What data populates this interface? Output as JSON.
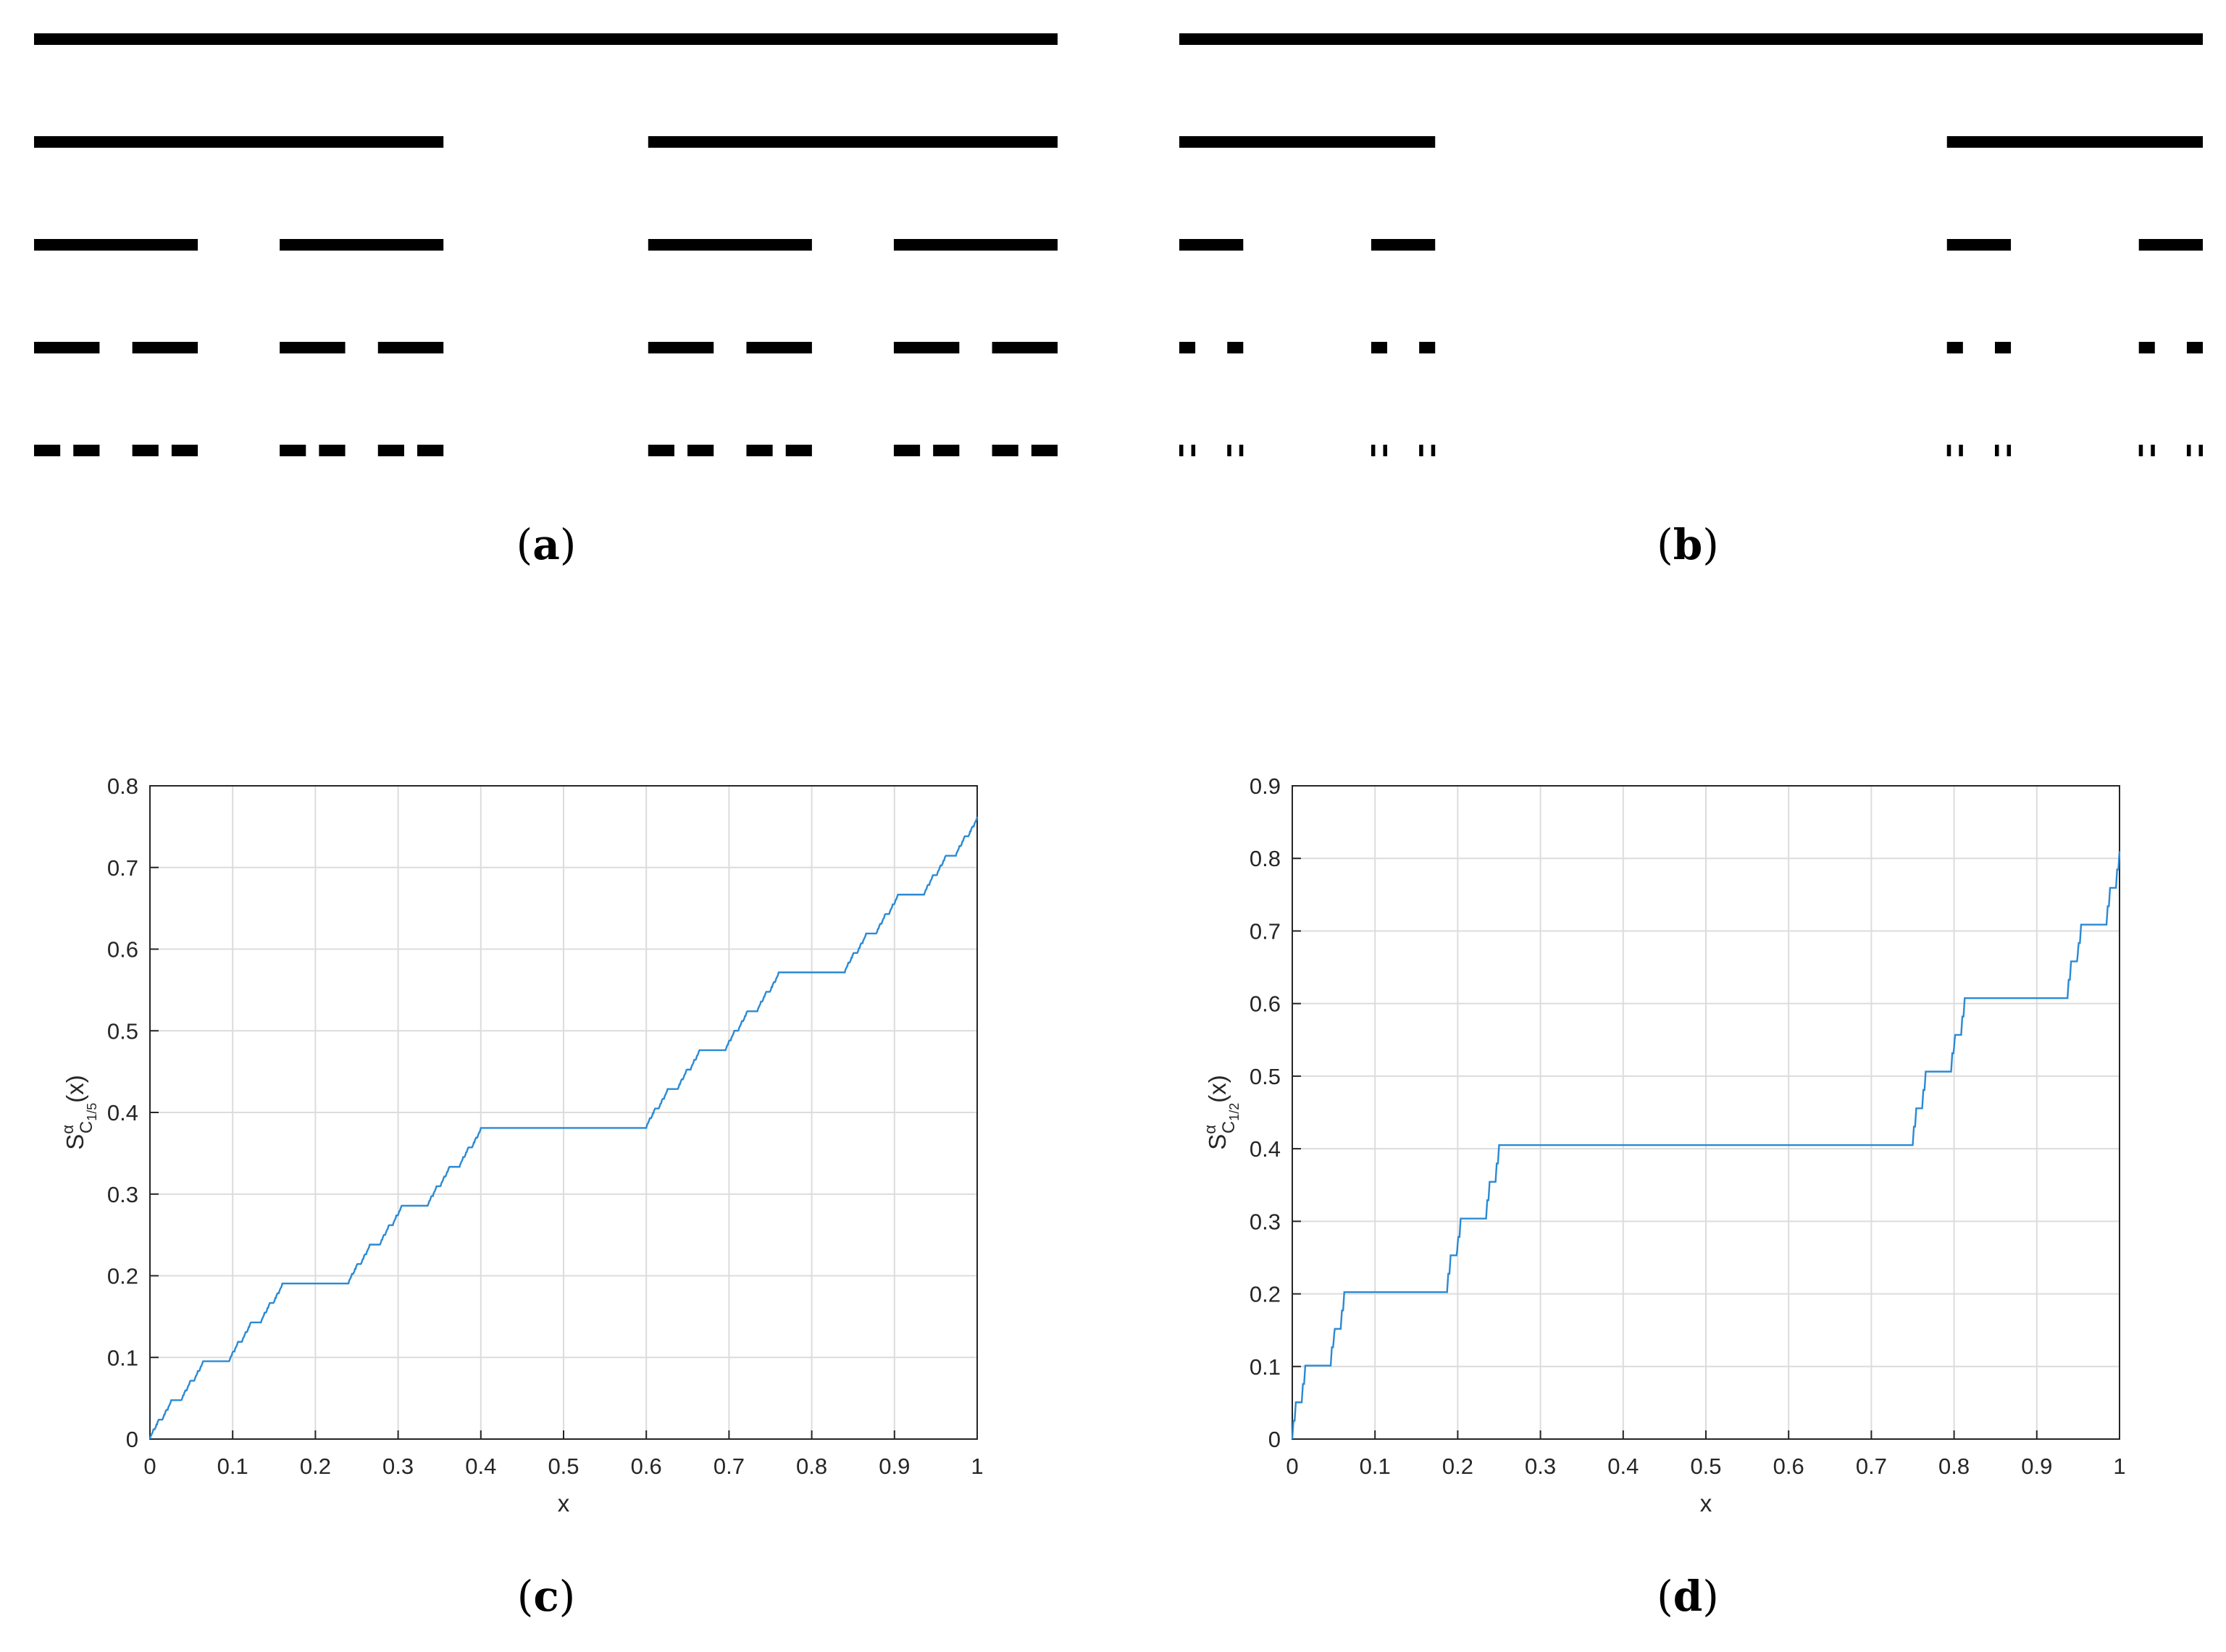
{
  "labels": {
    "a": "a",
    "b": "b",
    "c": "c",
    "d": "d"
  },
  "colors": {
    "cantor_bar": "#000000",
    "curve": "#2a8ad4",
    "grid": "#dcdcdc",
    "axis": "#262626"
  },
  "cantor_sets": [
    {
      "id": "a",
      "removed_fraction": 0.2,
      "levels": 5
    },
    {
      "id": "b",
      "removed_fraction": 0.5,
      "levels": 5
    }
  ],
  "chart_data": [
    {
      "id": "c",
      "type": "line",
      "removed_fraction": 0.2,
      "xlabel": "x",
      "ylabel_main": "S",
      "ylabel_sup": "α",
      "ylabel_sub": "C",
      "ylabel_subsub": "1/5",
      "ylabel_tail": "(x)",
      "xlim": [
        0,
        1
      ],
      "ylim": [
        0,
        0.8
      ],
      "x_ticks": [
        "0",
        "0.1",
        "0.2",
        "0.3",
        "0.4",
        "0.5",
        "0.6",
        "0.7",
        "0.8",
        "0.9",
        "1"
      ],
      "y_ticks": [
        "0",
        "0.1",
        "0.2",
        "0.3",
        "0.4",
        "0.5",
        "0.6",
        "0.7",
        "0.8"
      ],
      "grid": true,
      "end_value": 0.762
    },
    {
      "id": "d",
      "type": "line",
      "removed_fraction": 0.5,
      "xlabel": "x",
      "ylabel_main": "S",
      "ylabel_sup": "α",
      "ylabel_sub": "C",
      "ylabel_subsub": "1/2",
      "ylabel_tail": "(x)",
      "xlim": [
        0,
        1
      ],
      "ylim": [
        0,
        0.9
      ],
      "x_ticks": [
        "0",
        "0.1",
        "0.2",
        "0.3",
        "0.4",
        "0.5",
        "0.6",
        "0.7",
        "0.8",
        "0.9",
        "1"
      ],
      "y_ticks": [
        "0",
        "0.1",
        "0.2",
        "0.3",
        "0.4",
        "0.5",
        "0.6",
        "0.7",
        "0.8",
        "0.9"
      ],
      "grid": true,
      "end_value": 0.81
    }
  ]
}
